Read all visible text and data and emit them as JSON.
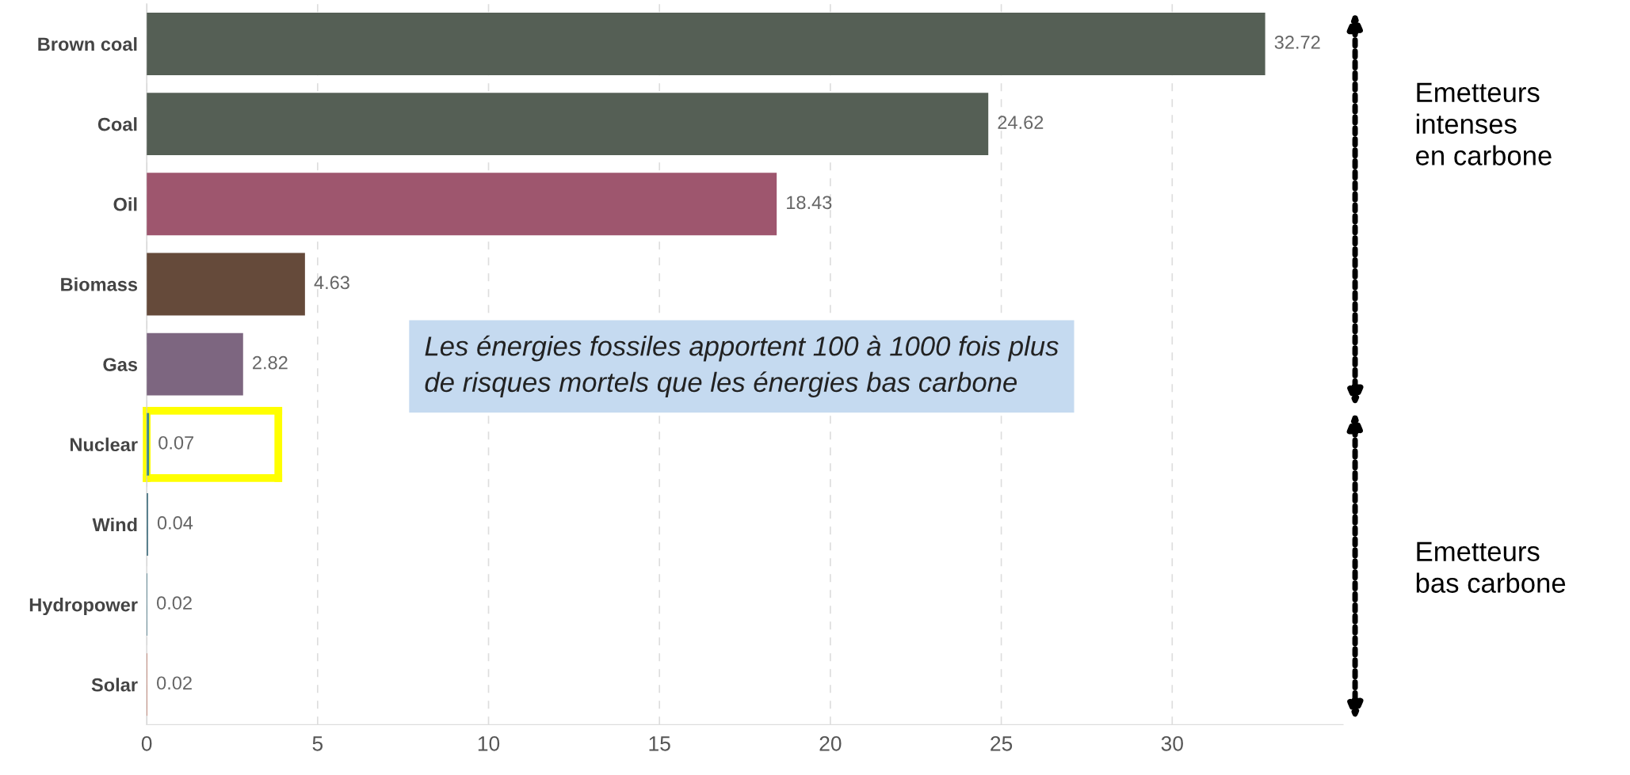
{
  "chart_data": {
    "type": "bar",
    "orientation": "horizontal",
    "categories": [
      "Brown coal",
      "Coal",
      "Oil",
      "Biomass",
      "Gas",
      "Nuclear",
      "Wind",
      "Hydropower",
      "Solar"
    ],
    "values": [
      32.72,
      24.62,
      18.43,
      4.63,
      2.82,
      0.07,
      0.04,
      0.02,
      0.02
    ],
    "colors": [
      "#555f55",
      "#555f55",
      "#9e566e",
      "#654a3a",
      "#7d6680",
      "#3c8a8a",
      "#3a6a7a",
      "#4a7a8a",
      "#c07a6a"
    ],
    "xlim": [
      0,
      35
    ],
    "xticks": [
      0,
      5,
      10,
      15,
      20,
      25,
      30
    ],
    "grid": "x",
    "data_labels": true,
    "annotations": [
      "Les énergies fossiles apportent 100 à 1000 fois plus\nde risques mortels que les énergies bas carbone",
      "Emetteurs\nintenses\nen carbone",
      "Emetteurs\nbas carbone"
    ]
  }
}
